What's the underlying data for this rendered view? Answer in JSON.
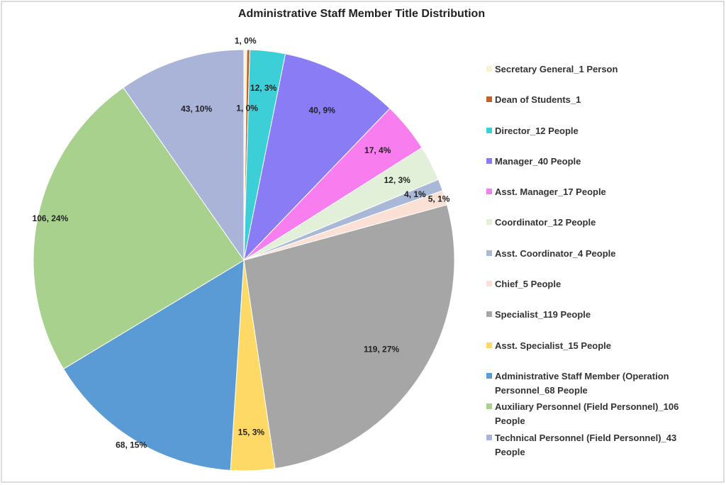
{
  "chart_data": {
    "type": "pie",
    "title": "Administrative Staff Member Title Distribution",
    "categories": [
      "Secretary General_1 Person",
      "Dean of Students_1",
      "Director_12 People",
      "Manager_40 People",
      "Asst. Manager_17 People",
      "Coordinator_12 People",
      "Asst. Coordinator_4 People",
      "Chief_5 People",
      "Specialist_119 People",
      "Asst. Specialist_15 People",
      "Administrative Staff Member (Operation Personnel_68 People",
      "Auxiliary Personnel (Field Personnel)_106 People",
      "Technical Personnel (Field Personnel)_43 People"
    ],
    "values": [
      1,
      1,
      12,
      40,
      17,
      12,
      4,
      5,
      119,
      15,
      68,
      106,
      43
    ],
    "value_labels": [
      "1, 0%",
      "1, 0%",
      "12, 3%",
      "40, 9%",
      "17, 4%",
      "12, 3%",
      "4, 1%",
      "5, 1%",
      "119, 27%",
      "15, 3%",
      "68, 15%",
      "106, 24%",
      "43, 10%"
    ],
    "colors": [
      "#fdf1d0",
      "#c0632a",
      "#3ccfd8",
      "#8a7cf5",
      "#f87ef0",
      "#e2f0d9",
      "#aab8d8",
      "#fbe0d5",
      "#a6a6a6",
      "#ffd966",
      "#5b9bd5",
      "#a9d18e",
      "#a9b4d8"
    ],
    "legend": "right"
  }
}
